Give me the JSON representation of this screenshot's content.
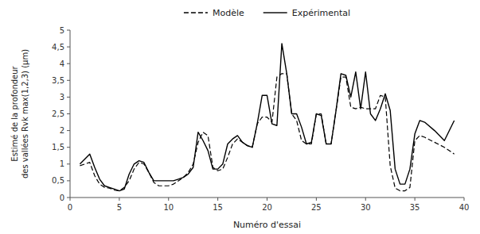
{
  "chart_data": {
    "type": "line",
    "x_label": "Numéro d'essai",
    "y_label": "Estimé de la profondeur\ndes vallées Rvk max(1,2,3) (μm)",
    "xlim": [
      0,
      40
    ],
    "ylim": [
      0,
      5
    ],
    "xticks": [
      0,
      5,
      10,
      15,
      20,
      25,
      30,
      35,
      40
    ],
    "yticks": [
      0,
      {
        "value": 0.5,
        "label": "0,5"
      },
      1,
      {
        "value": 1.5,
        "label": "1,5"
      },
      2,
      {
        "value": 2.5,
        "label": "2,5"
      },
      3,
      {
        "value": 3.5,
        "label": "3,5"
      },
      4,
      {
        "value": 4.5,
        "label": "4,5"
      },
      5
    ],
    "grid": false,
    "legend": "top",
    "x": [
      1,
      2,
      2.5,
      3,
      3.5,
      4,
      4.5,
      5,
      5.5,
      6,
      6.5,
      7,
      7.5,
      8,
      8.5,
      9,
      9.5,
      10,
      10.5,
      11,
      11.5,
      12,
      12.5,
      13,
      13.5,
      14,
      14.5,
      15,
      15.5,
      16,
      16.5,
      17,
      17.5,
      18,
      18.5,
      19,
      19.5,
      20,
      20.5,
      21,
      21.5,
      22,
      22.5,
      23,
      23.5,
      24,
      24.5,
      25,
      25.5,
      26,
      26.5,
      27,
      27.5,
      28,
      28.5,
      29,
      29.5,
      30,
      30.5,
      31,
      31.5,
      32,
      32.5,
      33,
      33.5,
      34,
      34.5,
      35,
      35.5,
      36,
      37,
      38,
      39
    ],
    "series": [
      {
        "name": "Modèle",
        "color": "#000000",
        "line_style": "dashed",
        "values": [
          0.95,
          1.05,
          0.65,
          0.4,
          0.3,
          0.28,
          0.22,
          0.2,
          0.3,
          0.5,
          0.85,
          1.05,
          1.0,
          0.75,
          0.45,
          0.35,
          0.35,
          0.35,
          0.4,
          0.5,
          0.6,
          0.75,
          1.0,
          1.65,
          1.95,
          1.85,
          0.9,
          0.8,
          0.85,
          1.2,
          1.6,
          1.75,
          1.65,
          1.55,
          1.5,
          2.2,
          2.4,
          2.4,
          2.25,
          3.6,
          3.7,
          3.7,
          2.5,
          2.3,
          1.7,
          1.6,
          1.6,
          2.5,
          2.5,
          1.6,
          1.6,
          2.6,
          3.6,
          3.6,
          2.7,
          2.65,
          2.7,
          2.65,
          2.65,
          2.65,
          3.05,
          3.0,
          0.95,
          0.28,
          0.2,
          0.2,
          0.3,
          1.7,
          1.85,
          1.8,
          1.65,
          1.5,
          1.3
        ]
      },
      {
        "name": "Expérimental",
        "color": "#000000",
        "line_style": "solid",
        "values": [
          1.0,
          1.3,
          0.9,
          0.55,
          0.35,
          0.3,
          0.25,
          0.2,
          0.25,
          0.7,
          1.0,
          1.1,
          1.05,
          0.75,
          0.5,
          0.5,
          0.5,
          0.5,
          0.5,
          0.55,
          0.6,
          0.7,
          0.9,
          1.95,
          1.7,
          1.4,
          0.85,
          0.85,
          1.0,
          1.6,
          1.75,
          1.85,
          1.65,
          1.55,
          1.5,
          2.2,
          3.05,
          3.05,
          2.2,
          2.15,
          4.6,
          3.7,
          2.5,
          2.5,
          2.1,
          1.6,
          1.65,
          2.5,
          2.45,
          1.6,
          1.6,
          2.6,
          3.7,
          3.65,
          3.0,
          3.75,
          2.65,
          3.75,
          2.5,
          2.3,
          2.65,
          3.1,
          2.6,
          0.85,
          0.4,
          0.4,
          0.85,
          1.9,
          2.3,
          2.25,
          2.0,
          1.7,
          2.3
        ]
      }
    ]
  }
}
